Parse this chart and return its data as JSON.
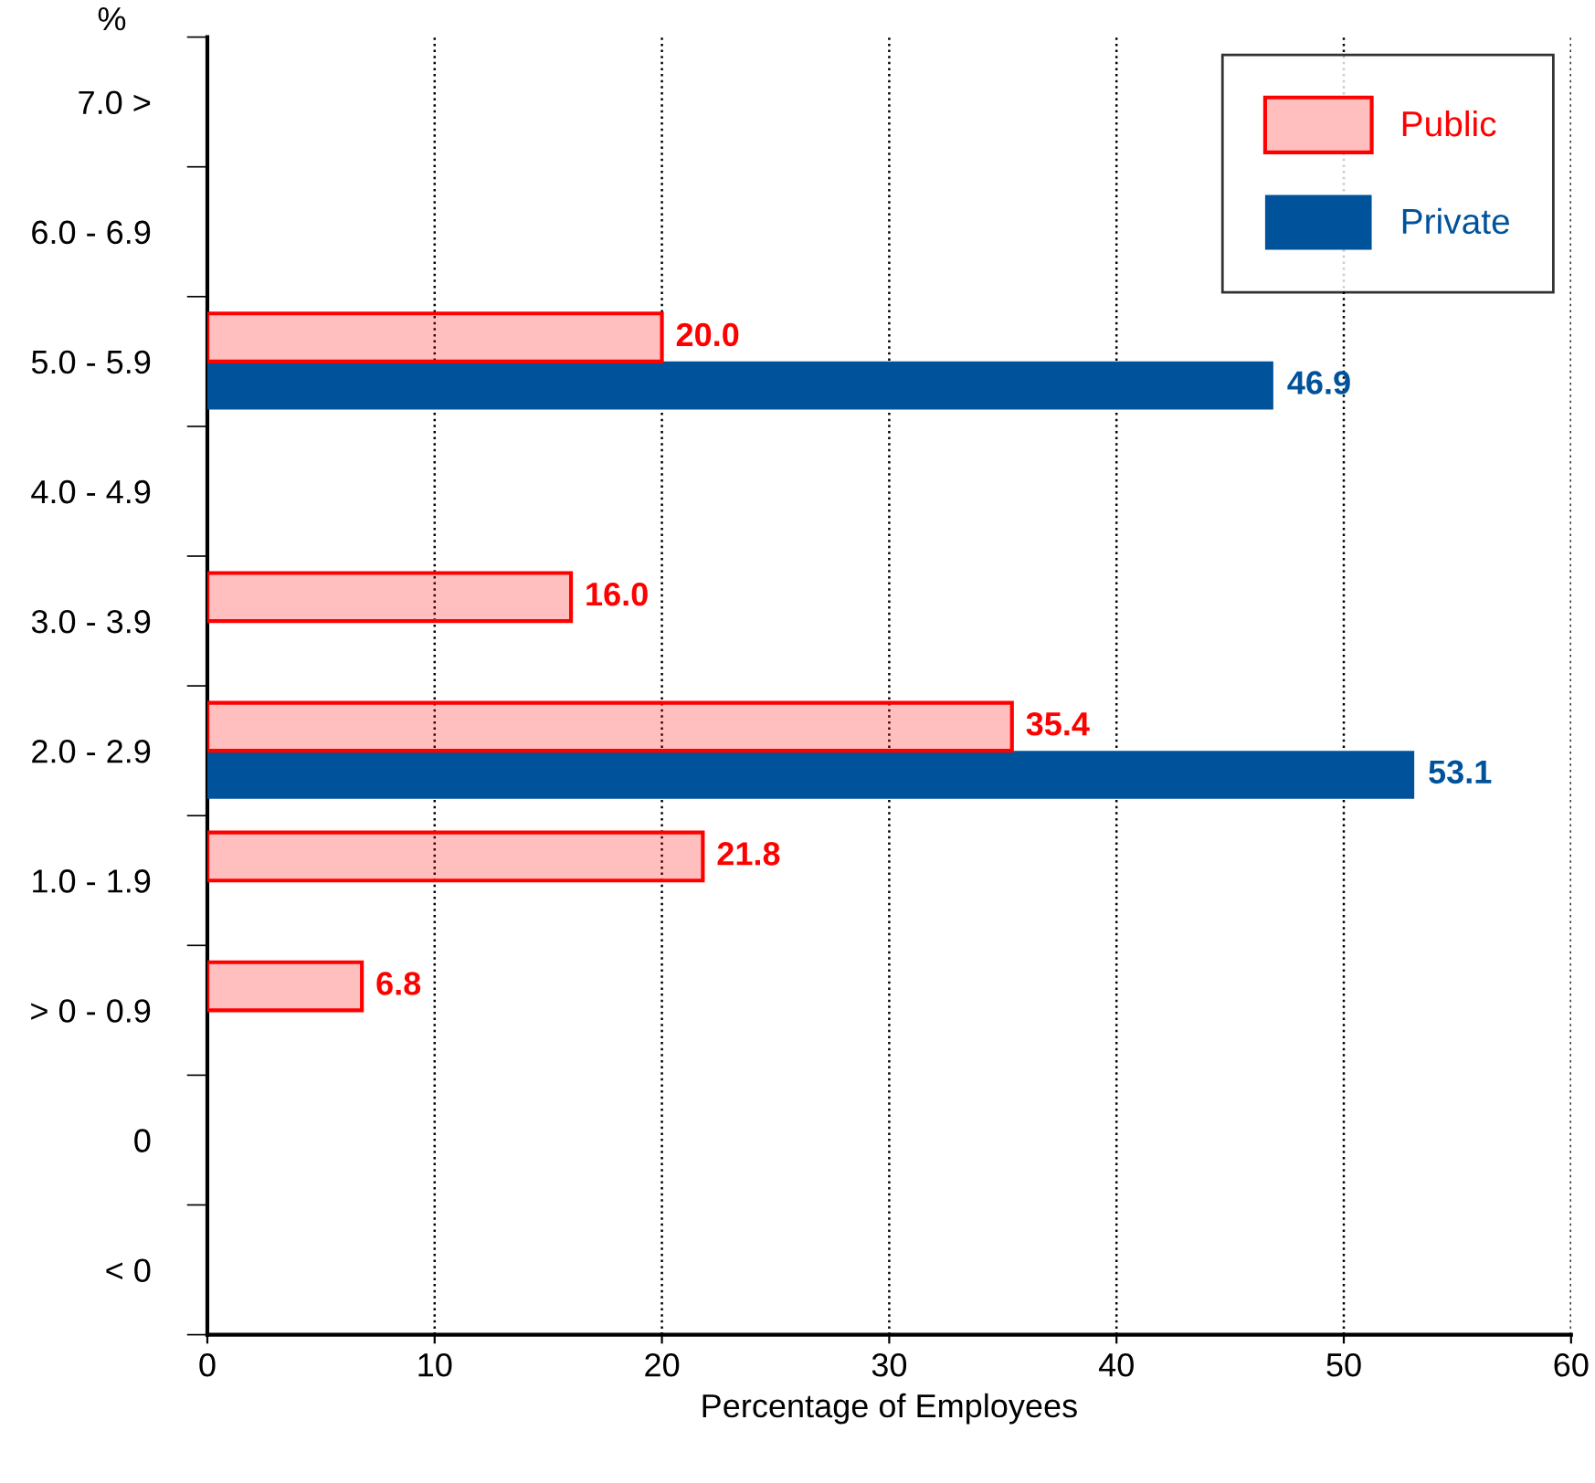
{
  "chart_data": {
    "type": "bar",
    "orientation": "horizontal",
    "ylabel": "%",
    "xlabel": "Percentage of Employees",
    "categories": [
      "7.0 >",
      "6.0 - 6.9",
      "5.0 - 5.9",
      "4.0 - 4.9",
      "3.0 - 3.9",
      "2.0 - 2.9",
      "1.0 - 1.9",
      "> 0 - 0.9",
      "0",
      "< 0"
    ],
    "series": [
      {
        "name": "Public",
        "color": "#ff0000",
        "values": [
          null,
          null,
          20.0,
          null,
          16.0,
          35.4,
          21.8,
          6.8,
          null,
          null
        ],
        "value_labels": [
          null,
          null,
          "20.0",
          null,
          "16.0",
          "35.4",
          "21.8",
          "6.8",
          null,
          null
        ]
      },
      {
        "name": "Private",
        "color": "#00529b",
        "values": [
          null,
          null,
          46.9,
          null,
          null,
          53.1,
          null,
          null,
          null,
          null
        ],
        "value_labels": [
          null,
          null,
          "46.9",
          null,
          null,
          "53.1",
          null,
          null,
          null,
          null
        ]
      }
    ],
    "xlim": [
      0,
      60
    ],
    "xticks": [
      0,
      10,
      20,
      30,
      40,
      50,
      60
    ],
    "grid": "x",
    "legend": "top right"
  }
}
